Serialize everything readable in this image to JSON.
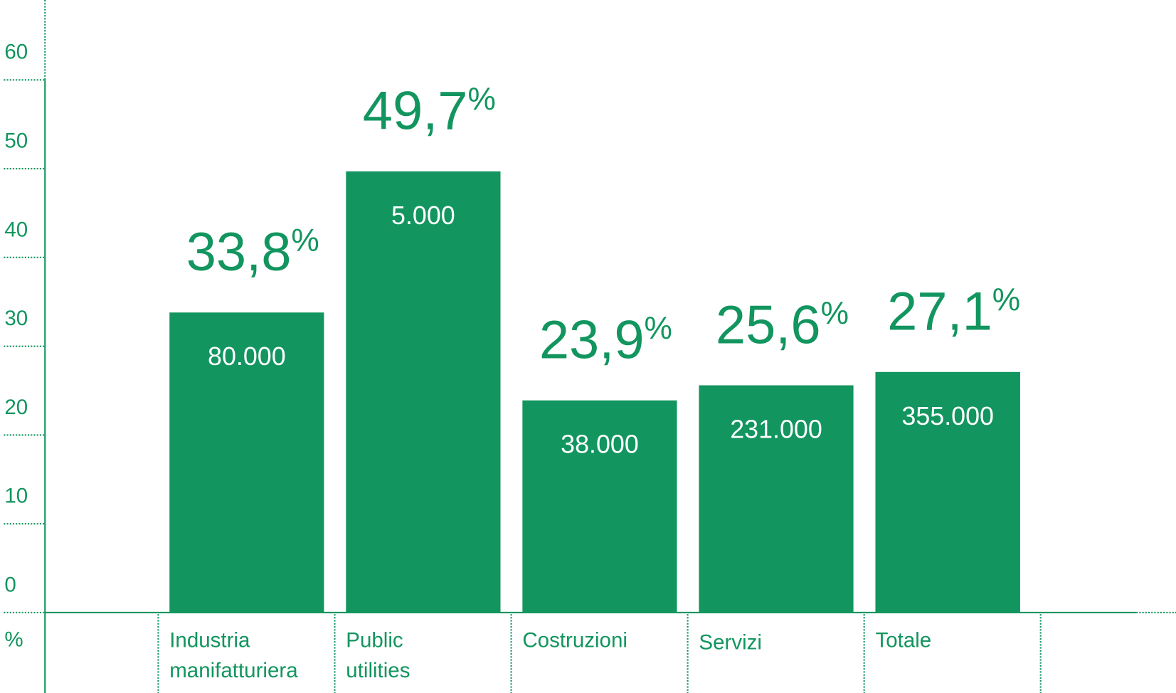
{
  "chart_data": {
    "type": "bar",
    "y_label": "%",
    "categories": [
      [
        "Industria",
        "manifatturiera"
      ],
      [
        "Public",
        "utilities"
      ],
      [
        "Costruzioni"
      ],
      [
        "Servizi"
      ],
      [
        "Totale"
      ]
    ],
    "values": [
      33.8,
      49.7,
      23.9,
      25.6,
      27.1
    ],
    "value_labels": [
      "33,8%",
      "49,7%",
      "23,9%",
      "25,6%",
      "27,1%"
    ],
    "inner_labels": [
      "80.000",
      "5.000",
      "38.000",
      "231.000",
      "355.000"
    ],
    "color": "#12955f",
    "ylim": [
      0,
      69
    ],
    "yticks": [
      0,
      10,
      20,
      30,
      40,
      50,
      60
    ],
    "grid": false
  }
}
